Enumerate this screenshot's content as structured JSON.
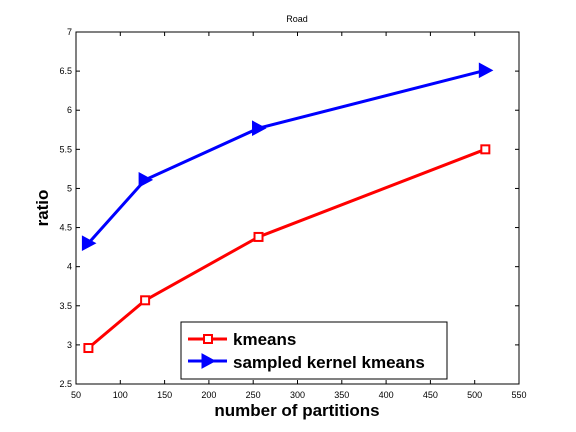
{
  "chart_data": {
    "type": "line",
    "title": "Road",
    "xlabel": "number of partitions",
    "ylabel": "ratio",
    "xlim": [
      50,
      550
    ],
    "ylim": [
      2.5,
      7
    ],
    "xticks": [
      50,
      100,
      150,
      200,
      250,
      300,
      350,
      400,
      450,
      500,
      550
    ],
    "yticks": [
      2.5,
      3,
      3.5,
      4,
      4.5,
      5,
      5.5,
      6,
      6.5,
      7
    ],
    "grid": false,
    "legend_position": "bottom-center",
    "series": [
      {
        "name": "kmeans",
        "color": "#ff0000",
        "marker": "square",
        "x": [
          64,
          128,
          256,
          512
        ],
        "y": [
          2.96,
          3.57,
          4.38,
          5.5
        ]
      },
      {
        "name": "sampled kernel kmeans",
        "color": "#0000ff",
        "marker": "triangle-right",
        "x": [
          64,
          128,
          256,
          512
        ],
        "y": [
          4.3,
          5.11,
          5.77,
          6.51
        ]
      }
    ]
  }
}
